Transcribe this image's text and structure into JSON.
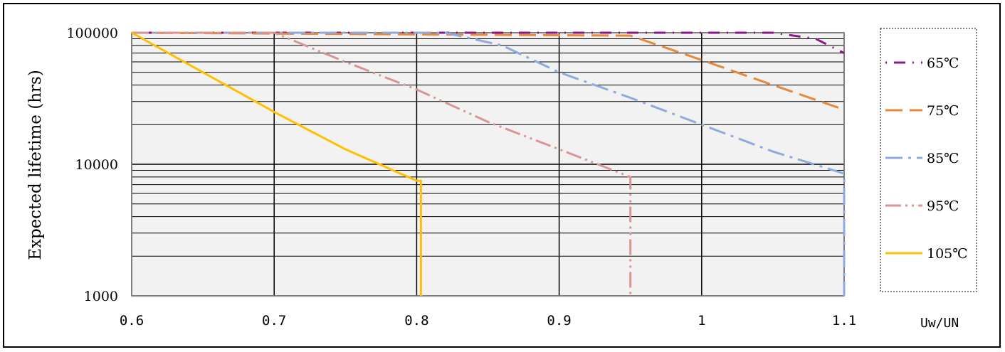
{
  "chart_data": {
    "type": "line",
    "ylabel": "Expected lifetime (hrs)",
    "xlabel": "Uw/UN",
    "x_ticks": [
      "0.6",
      "0.7",
      "0.8",
      "0.9",
      "1",
      "1.1"
    ],
    "y_ticks": [
      "1000",
      "10000",
      "100000"
    ],
    "xlim": [
      0.6,
      1.1
    ],
    "ylim": [
      1000,
      100000
    ],
    "yscale": "log",
    "grid": true,
    "legend_position": "right",
    "series": [
      {
        "name": "65℃",
        "color": "#8B1A89",
        "dash": "2,10,16,10",
        "points": [
          [
            0.6,
            100000
          ],
          [
            1.05,
            100000
          ],
          [
            1.08,
            90000
          ],
          [
            1.1,
            70000
          ]
        ]
      },
      {
        "name": "75℃",
        "color": "#E8883A",
        "dash": "24,10",
        "points": [
          [
            0.6,
            100000
          ],
          [
            0.95,
            95000
          ],
          [
            1.0,
            62000
          ],
          [
            1.05,
            40000
          ],
          [
            1.1,
            26000
          ]
        ]
      },
      {
        "name": "85℃",
        "color": "#8FAADC",
        "dash": "24,8,4,8",
        "points": [
          [
            0.6,
            100000
          ],
          [
            0.82,
            100000
          ],
          [
            0.86,
            80000
          ],
          [
            0.9,
            50000
          ],
          [
            0.95,
            32000
          ],
          [
            1.0,
            20000
          ],
          [
            1.05,
            12500
          ],
          [
            1.1,
            8500
          ],
          [
            1.1,
            1000
          ]
        ]
      },
      {
        "name": "95℃",
        "color": "#D99594",
        "dash": "22,6,3,6,3,6",
        "points": [
          [
            0.6,
            100000
          ],
          [
            0.7,
            100000
          ],
          [
            0.75,
            60000
          ],
          [
            0.8,
            37000
          ],
          [
            0.85,
            21000
          ],
          [
            0.9,
            13000
          ],
          [
            0.95,
            8000
          ],
          [
            0.95,
            1000
          ]
        ]
      },
      {
        "name": "105℃",
        "color": "#FFC000",
        "dash": "",
        "points": [
          [
            0.6,
            100000
          ],
          [
            0.65,
            50000
          ],
          [
            0.7,
            25000
          ],
          [
            0.75,
            13000
          ],
          [
            0.8,
            7500
          ],
          [
            0.803,
            7500
          ],
          [
            0.803,
            1000
          ]
        ]
      }
    ]
  }
}
